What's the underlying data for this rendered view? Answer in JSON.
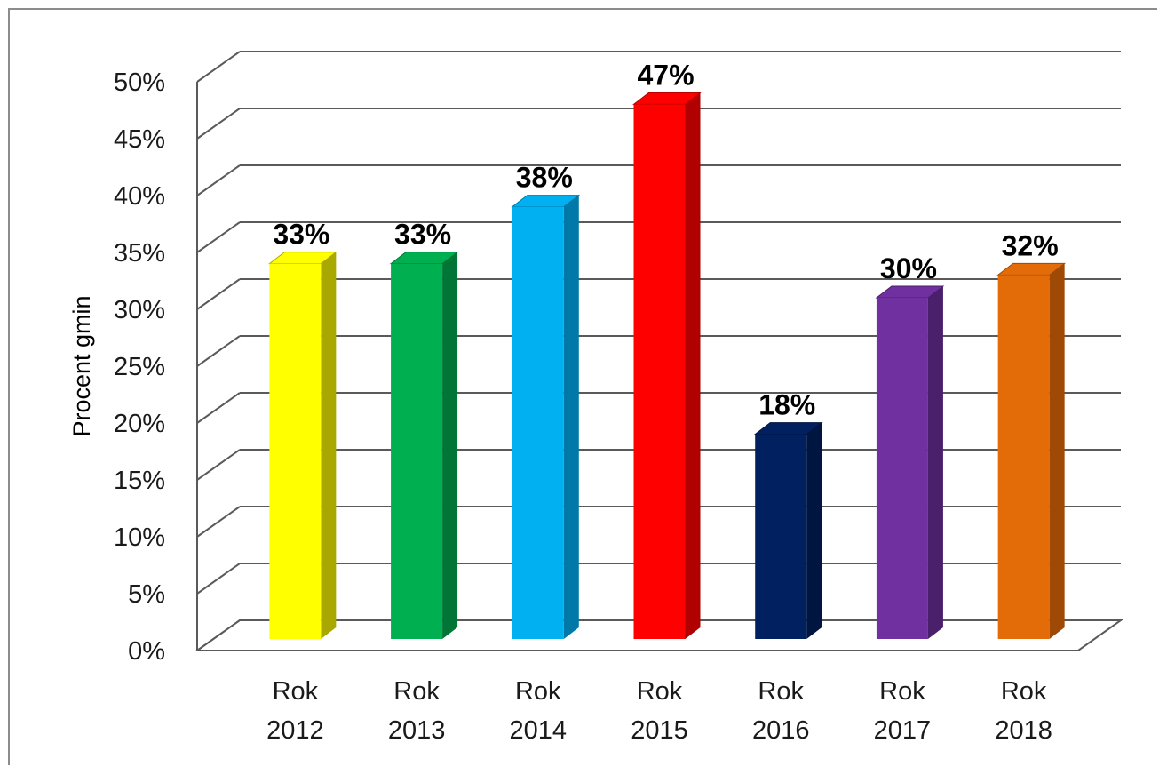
{
  "chart_data": {
    "type": "bar",
    "categories": [
      [
        "Rok",
        "2012"
      ],
      [
        "Rok",
        "2013"
      ],
      [
        "Rok",
        "2014"
      ],
      [
        "Rok",
        "2015"
      ],
      [
        "Rok",
        "2016"
      ],
      [
        "Rok",
        "2017"
      ],
      [
        "Rok",
        "2018"
      ]
    ],
    "values": [
      33,
      33,
      38,
      47,
      18,
      30,
      32
    ],
    "data_labels": [
      "33%",
      "33%",
      "38%",
      "47%",
      "18%",
      "30%",
      "32%"
    ],
    "colors": [
      "#ffff00",
      "#00b050",
      "#00b0f0",
      "#ff0000",
      "#002060",
      "#7030a0",
      "#e36c09"
    ],
    "side_colors": [
      "#a8a800",
      "#007535",
      "#0078a8",
      "#b00000",
      "#001540",
      "#4a1f6b",
      "#9e4a06"
    ],
    "ylabel": "Procent  gmin",
    "xlabel": "",
    "ylim": [
      0,
      50
    ],
    "ytick_step": 5,
    "ytick_labels": [
      "0%",
      "5%",
      "10%",
      "15%",
      "20%",
      "25%",
      "30%",
      "35%",
      "40%",
      "45%",
      "50%"
    ],
    "grid": true,
    "chart_style": "3d-column"
  }
}
